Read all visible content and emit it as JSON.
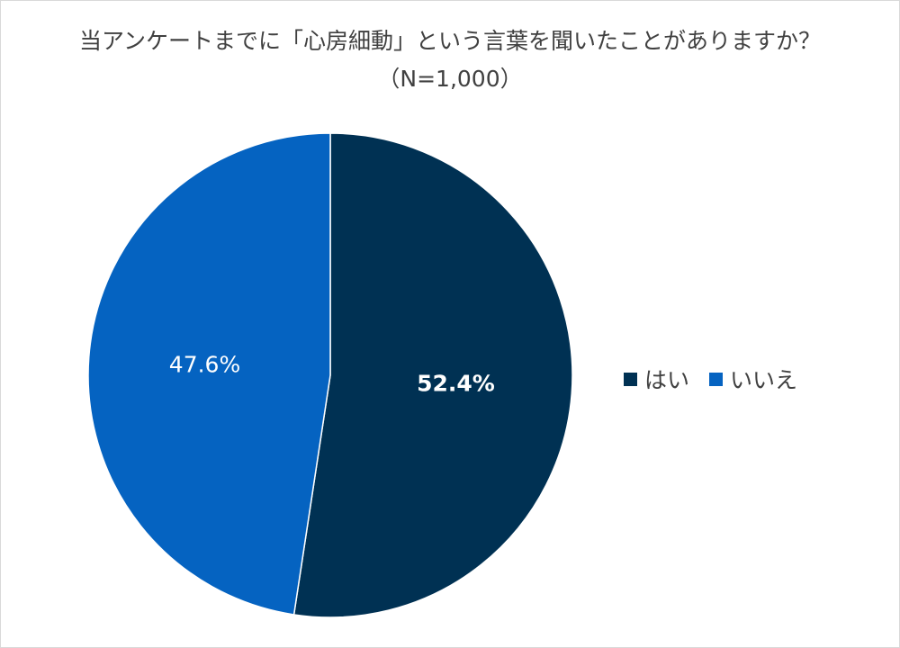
{
  "chart_data": {
    "type": "pie",
    "title": "当アンケートまでに「心房細動」という言葉を聞いたことがありますか？",
    "subtitle": "（N=1,000）",
    "categories": [
      "はい",
      "いいえ"
    ],
    "values": [
      52.4,
      47.6
    ],
    "labels": [
      "52.4%",
      "47.6%"
    ],
    "colors": [
      "#003153",
      "#0563C1"
    ],
    "legend_position": "right"
  }
}
